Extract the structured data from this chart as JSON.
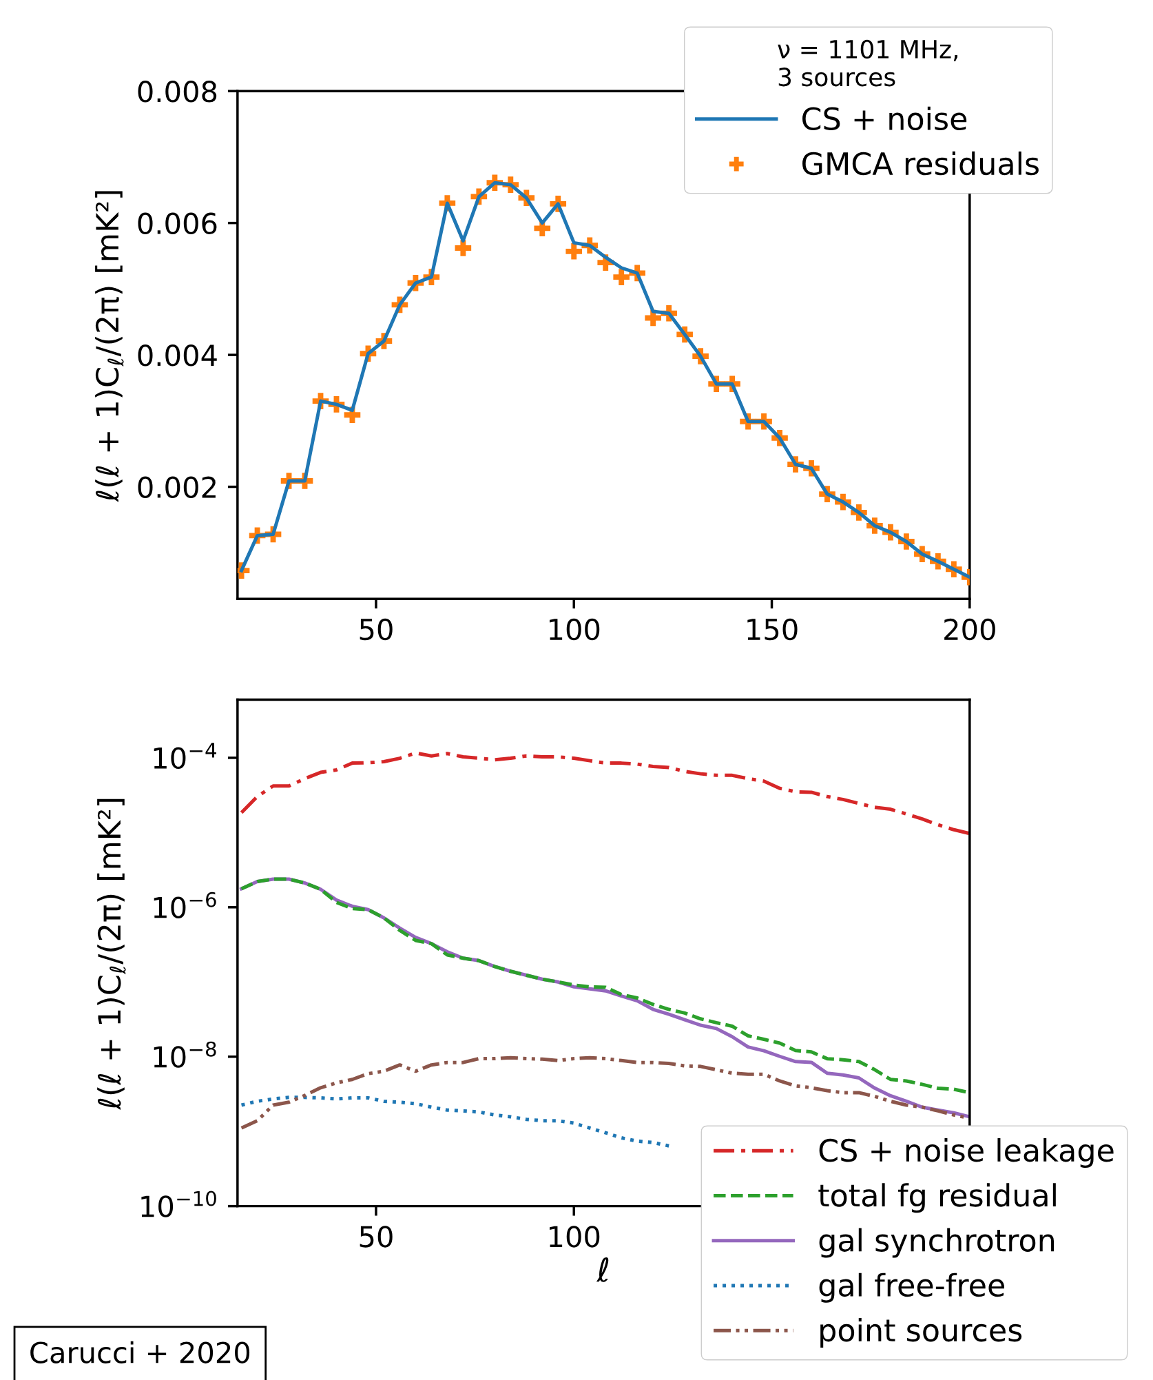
{
  "chart_data": [
    {
      "type": "line",
      "ylabel": "ℓ(ℓ + 1)C$_{ℓ}$/(2π) [mK²]",
      "legend_title": "ν = 1101 MHz,\n3 sources",
      "legend": "top right",
      "grid": false,
      "xlim": [
        15,
        200
      ],
      "xticks": [
        50,
        100,
        150,
        200
      ],
      "ylim": [
        0.0003,
        0.008
      ],
      "yticks": [
        0.002,
        0.004,
        0.006,
        0.008
      ],
      "x": [
        16,
        20,
        24,
        28,
        32,
        36,
        40,
        44,
        48,
        52,
        56,
        60,
        64,
        68,
        72,
        76,
        80,
        84,
        88,
        92,
        96,
        100,
        104,
        108,
        112,
        116,
        120,
        124,
        128,
        132,
        136,
        140,
        144,
        148,
        152,
        156,
        160,
        164,
        168,
        172,
        176,
        180,
        184,
        188,
        192,
        196,
        200
      ],
      "series": [
        {
          "name": "CS + noise",
          "type": "line",
          "color": "#1f77b4",
          "line_style": "solid",
          "values": [
            0.00073,
            0.00126,
            0.00128,
            0.00209,
            0.00209,
            0.0033,
            0.00325,
            0.00316,
            0.00402,
            0.00421,
            0.00476,
            0.00509,
            0.00518,
            0.0063,
            0.00573,
            0.0064,
            0.00661,
            0.00658,
            0.00638,
            0.006,
            0.00629,
            0.0057,
            0.00566,
            0.00548,
            0.00532,
            0.00524,
            0.00466,
            0.00463,
            0.00431,
            0.00398,
            0.00356,
            0.00356,
            0.00299,
            0.00299,
            0.00274,
            0.00234,
            0.00228,
            0.00189,
            0.00177,
            0.00161,
            0.00141,
            0.00131,
            0.00117,
            0.00098,
            0.00087,
            0.00075,
            0.00063
          ]
        },
        {
          "name": "GMCA residuals",
          "type": "scatter",
          "color": "#ff7f0e",
          "marker": "cross",
          "values": [
            0.00073,
            0.00126,
            0.00128,
            0.00209,
            0.00209,
            0.0033,
            0.00325,
            0.00309,
            0.00402,
            0.00421,
            0.00476,
            0.00509,
            0.00518,
            0.0063,
            0.00562,
            0.0064,
            0.00661,
            0.00658,
            0.00638,
            0.00592,
            0.00629,
            0.00557,
            0.00566,
            0.0054,
            0.00518,
            0.00524,
            0.00456,
            0.00463,
            0.00431,
            0.00398,
            0.00356,
            0.00356,
            0.00299,
            0.00299,
            0.00274,
            0.00234,
            0.00228,
            0.00189,
            0.00177,
            0.00161,
            0.00141,
            0.00131,
            0.00117,
            0.00098,
            0.00087,
            0.00075,
            0.00063
          ]
        }
      ]
    },
    {
      "type": "line",
      "xlabel": "ℓ",
      "ylabel": "ℓ(ℓ + 1)C$_{ℓ}$/(2π) [mK²]",
      "legend": "bottom right",
      "grid": false,
      "log": "y",
      "xlim": [
        15,
        200
      ],
      "xticks": [
        50,
        100
      ],
      "ylim": [
        1e-10,
        0.0006
      ],
      "yticks": [
        {
          "value": 1e-10,
          "label": "10$^{−10}$"
        },
        {
          "value": 1e-08,
          "label": "10$^{−8}$"
        },
        {
          "value": 1e-06,
          "label": "10$^{−6}$"
        },
        {
          "value": 0.0001,
          "label": "10$^{−4}$"
        }
      ],
      "x": [
        16,
        20,
        24,
        28,
        32,
        36,
        40,
        44,
        48,
        52,
        56,
        60,
        64,
        68,
        72,
        76,
        80,
        84,
        88,
        92,
        96,
        100,
        104,
        108,
        112,
        116,
        120,
        124,
        128,
        132,
        136,
        140,
        144,
        148,
        152,
        156,
        160,
        164,
        168,
        172,
        176,
        180,
        184,
        188,
        192,
        196,
        200
      ],
      "annotations": [
        "Carucci + 2020"
      ],
      "series": [
        {
          "name": "CS + noise leakage",
          "color": "#d62728",
          "line_style": "dashdot",
          "values": [
            1.85e-05,
            3.03e-05,
            4.2e-05,
            4.2e-05,
            5.26e-05,
            6.38e-05,
            6.89e-05,
            8.49e-05,
            8.61e-05,
            8.87e-05,
            9.86e-05,
            0.000116,
            0.000106,
            0.000114,
            0.000103,
            9.86e-05,
            9.42e-05,
            9.86e-05,
            0.000106,
            0.000103,
            0.000103,
            9.86e-05,
            9.14e-05,
            8.49e-05,
            8.49e-05,
            8.24e-05,
            7.64e-05,
            7.41e-05,
            6.58e-05,
            6.11e-05,
            5.83e-05,
            5.83e-05,
            5.26e-05,
            4.88e-05,
            3.9e-05,
            3.51e-05,
            3.46e-05,
            3.03e-05,
            2.77e-05,
            2.45e-05,
            2.18e-05,
            2.05e-05,
            1.77e-05,
            1.52e-05,
            1.27e-05,
            1.09e-05,
            9.7e-06
          ]
        },
        {
          "name": "total fg residual",
          "color": "#2ca02c",
          "line_style": "dashed",
          "values": [
            1.77e-06,
            2.21e-06,
            2.38e-06,
            2.38e-06,
            2.11e-06,
            1.74e-06,
            1.16e-06,
            9.6e-07,
            9.3e-07,
            7.2e-07,
            4.9e-07,
            3.6e-07,
            3.26e-07,
            2.3e-07,
            2.08e-07,
            1.93e-07,
            1.61e-07,
            1.39e-07,
            1.23e-07,
            1.09e-07,
            1e-07,
            9.1e-08,
            8.6e-08,
            8.5e-08,
            6.8e-08,
            6.1e-08,
            5e-08,
            4.3e-08,
            3.84e-08,
            3.21e-08,
            2.85e-08,
            2.56e-08,
            1.9e-08,
            1.71e-08,
            1.52e-08,
            1.21e-08,
            1.16e-08,
            9.4e-09,
            9.1e-09,
            8.6e-09,
            6.7e-09,
            4.96e-09,
            4.73e-09,
            4.26e-09,
            3.78e-09,
            3.67e-09,
            3.3e-09
          ]
        },
        {
          "name": "gal synchrotron",
          "color": "#9467bd",
          "line_style": "solid",
          "values": [
            1.77e-06,
            2.21e-06,
            2.38e-06,
            2.38e-06,
            2.11e-06,
            1.74e-06,
            1.25e-06,
            1.03e-06,
            9.3e-07,
            7.2e-07,
            5.26e-07,
            3.95e-07,
            3.26e-07,
            2.53e-07,
            2.08e-07,
            1.93e-07,
            1.61e-07,
            1.39e-07,
            1.23e-07,
            1.09e-07,
            1e-07,
            8.6e-08,
            8.1e-08,
            7.6e-08,
            6.5e-08,
            5.6e-08,
            4.3e-08,
            3.7e-08,
            3.12e-08,
            2.64e-08,
            2.38e-08,
            1.85e-08,
            1.35e-08,
            1.2e-08,
            1.01e-08,
            8.6e-09,
            8.4e-09,
            6e-09,
            5.7e-09,
            5.2e-09,
            3.8e-09,
            3e-09,
            2.53e-09,
            2.11e-09,
            1.93e-09,
            1.77e-09,
            1.57e-09
          ]
        },
        {
          "name": "gal free-free",
          "color": "#1f77b4",
          "line_style": "dotted",
          "values": [
            2.25e-09,
            2.53e-09,
            2.72e-09,
            2.85e-09,
            2.85e-09,
            2.81e-09,
            2.72e-09,
            2.81e-09,
            2.81e-09,
            2.53e-09,
            2.46e-09,
            2.35e-09,
            2.11e-09,
            1.93e-09,
            1.88e-09,
            1.82e-09,
            1.66e-09,
            1.57e-09,
            1.45e-09,
            1.39e-09,
            1.39e-09,
            1.29e-09,
            1.11e-09,
            9.6e-10,
            8.2e-10,
            7.4e-10,
            7.1e-10,
            6.4e-10,
            null,
            null,
            null,
            null,
            null,
            null,
            null,
            null,
            null,
            null,
            null,
            null,
            null,
            null,
            null,
            null,
            null,
            null,
            null
          ]
        },
        {
          "name": "point sources",
          "color": "#8c564b",
          "line_style": "dashdotdot",
          "values": [
            1.11e-09,
            1.39e-09,
            2.25e-09,
            2.46e-09,
            3.03e-09,
            3.84e-09,
            4.46e-09,
            4.96e-09,
            5.93e-09,
            6.39e-09,
            7.76e-09,
            6.39e-09,
            7.76e-09,
            8.36e-09,
            8.36e-09,
            9.42e-09,
            9.42e-09,
            9.7e-09,
            9.42e-09,
            9.28e-09,
            8.88e-09,
            9.42e-09,
            9.7e-09,
            9.42e-09,
            8.88e-09,
            8.36e-09,
            8.36e-09,
            8.11e-09,
            7.53e-09,
            7.41e-09,
            6.68e-09,
            6.01e-09,
            5.83e-09,
            5.83e-09,
            4.73e-09,
            4.07e-09,
            3.84e-09,
            3.51e-09,
            3.3e-09,
            3.3e-09,
            2.94e-09,
            2.53e-09,
            2.25e-09,
            2.11e-09,
            1.88e-09,
            1.66e-09,
            1.5e-09
          ]
        }
      ]
    }
  ]
}
